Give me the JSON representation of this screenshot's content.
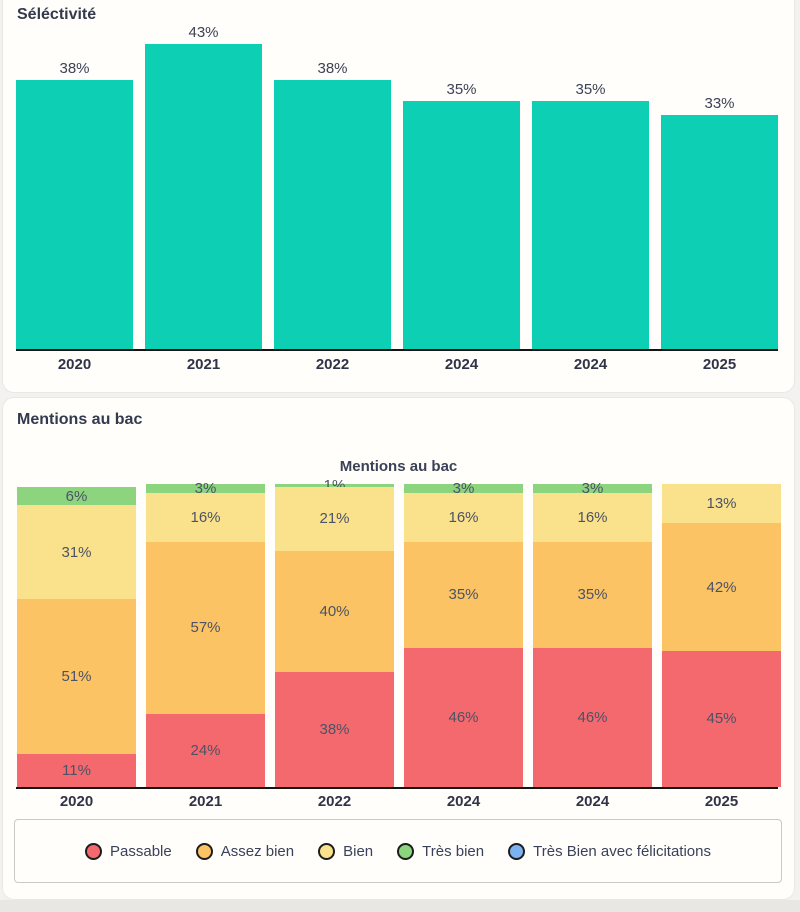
{
  "chart_data": [
    {
      "id": "selectivite",
      "type": "bar",
      "title": "Séléctivité",
      "categories": [
        "2020",
        "2021",
        "2022",
        "2024",
        "2024",
        "2025"
      ],
      "values": [
        38,
        43,
        38,
        35,
        35,
        33
      ],
      "value_suffix": "%",
      "bar_color": "#0ccfb4",
      "ylim": [
        0,
        43
      ],
      "grid": "off",
      "legend_position": "none"
    },
    {
      "id": "mentions",
      "type": "stacked-bar",
      "section_title": "Mentions au bac",
      "title": "Mentions au bac",
      "categories": [
        "2020",
        "2021",
        "2022",
        "2024",
        "2024",
        "2025"
      ],
      "series": [
        {
          "name": "Passable",
          "color": "#f4696e",
          "values": [
            11,
            24,
            38,
            46,
            46,
            45
          ]
        },
        {
          "name": "Assez bien",
          "color": "#fbc364",
          "values": [
            51,
            57,
            40,
            35,
            35,
            42
          ]
        },
        {
          "name": "Bien",
          "color": "#fae18c",
          "values": [
            31,
            16,
            21,
            16,
            16,
            13
          ]
        },
        {
          "name": "Très bien",
          "color": "#8cd57e",
          "values": [
            6,
            3,
            1,
            3,
            3,
            0
          ]
        },
        {
          "name": "Très Bien avec félicitations",
          "color": "#7db2f0",
          "values": [
            0,
            0,
            0,
            0,
            0,
            0
          ]
        }
      ],
      "value_suffix": "%",
      "ylim": [
        0,
        100
      ],
      "grid": "off",
      "legend_position": "bottom"
    }
  ],
  "colors": {
    "page_background": "#f3f2f0",
    "card_background": "#fffefa",
    "axis_line": "#141414",
    "bottom_strip": "#e8e7e4"
  }
}
